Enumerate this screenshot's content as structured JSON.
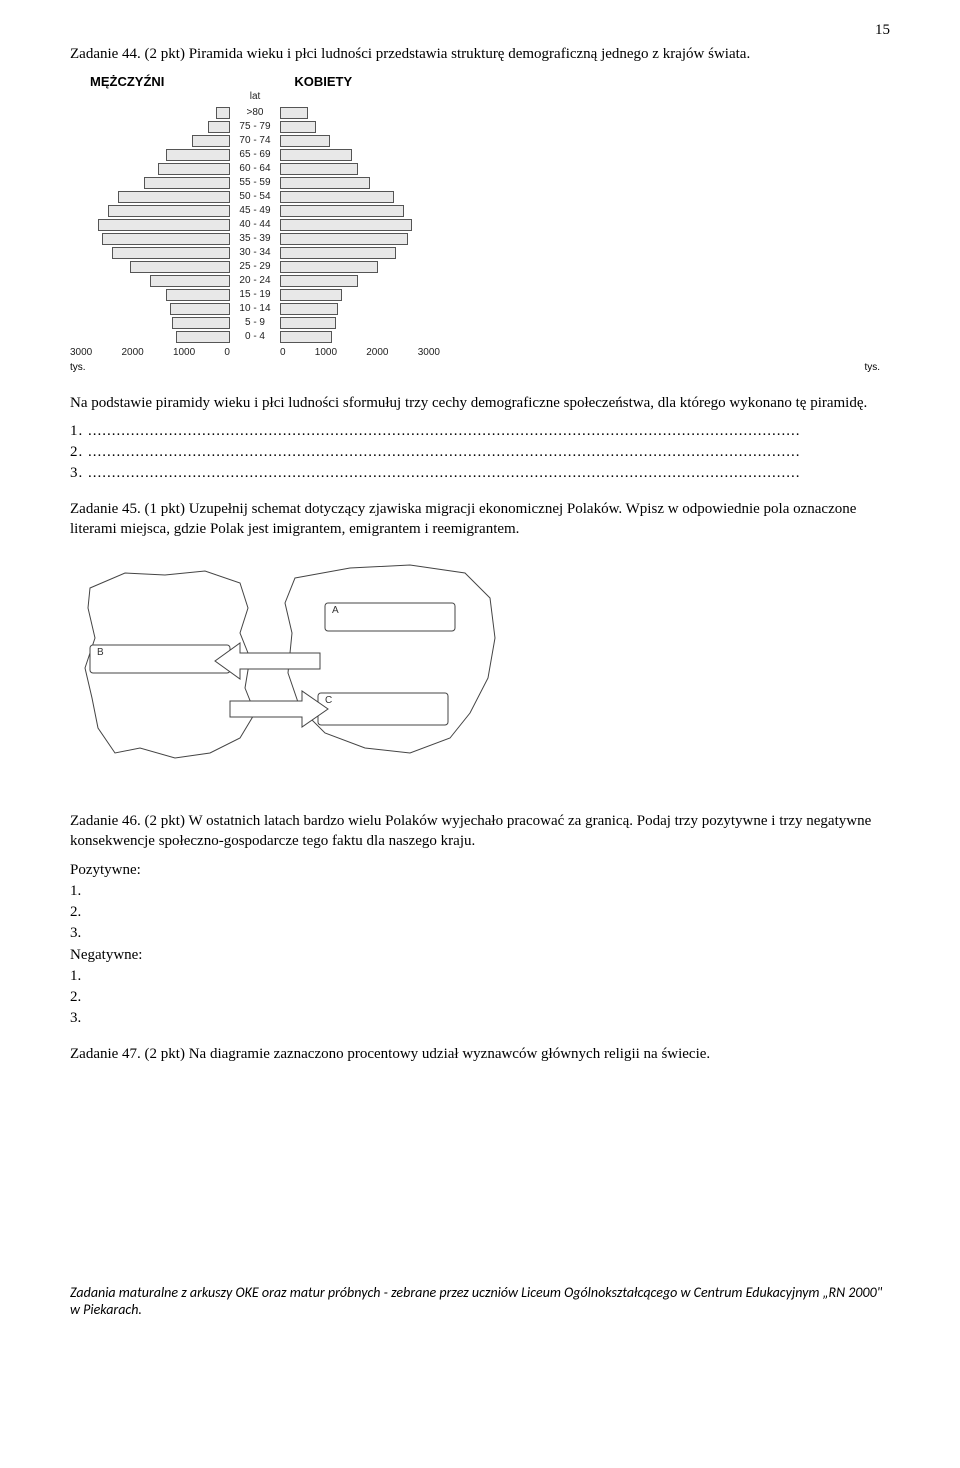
{
  "page_number": "15",
  "task44": {
    "heading": "Zadanie 44. (2 pkt) Piramida wieku i płci ludności przedstawia strukturę demograficzną jednego z krajów świata.",
    "headers": {
      "left": "MĘŻCZYŹNI",
      "right": "KOBIETY",
      "lat": "lat"
    },
    "rows": [
      {
        "label": ">80",
        "m": 14,
        "k": 28
      },
      {
        "label": "75 - 79",
        "m": 22,
        "k": 36
      },
      {
        "label": "70 - 74",
        "m": 38,
        "k": 50
      },
      {
        "label": "65 - 69",
        "m": 64,
        "k": 72
      },
      {
        "label": "60 - 64",
        "m": 72,
        "k": 78
      },
      {
        "label": "55 - 59",
        "m": 86,
        "k": 90
      },
      {
        "label": "50 - 54",
        "m": 112,
        "k": 114
      },
      {
        "label": "45 - 49",
        "m": 122,
        "k": 124
      },
      {
        "label": "40 - 44",
        "m": 132,
        "k": 132
      },
      {
        "label": "35 - 39",
        "m": 128,
        "k": 128
      },
      {
        "label": "30 - 34",
        "m": 118,
        "k": 116
      },
      {
        "label": "25 - 29",
        "m": 100,
        "k": 98
      },
      {
        "label": "20 - 24",
        "m": 80,
        "k": 78
      },
      {
        "label": "15 - 19",
        "m": 64,
        "k": 62
      },
      {
        "label": "10 - 14",
        "m": 60,
        "k": 58
      },
      {
        "label": "5 - 9",
        "m": 58,
        "k": 56
      },
      {
        "label": "0 - 4",
        "m": 54,
        "k": 52
      }
    ],
    "axis_left": [
      "3000",
      "2000",
      "1000",
      "0"
    ],
    "axis_right": [
      "0",
      "1000",
      "2000",
      "3000"
    ],
    "tys": "tys.",
    "instr": "Na podstawie piramidy wieku i płci ludności sformułuj trzy cechy demograficzne społeczeństwa, dla którego wykonano tę piramidę.",
    "lines": [
      "1. ......................................................................................................................................................",
      "2. ......................................................................................................................................................",
      "3. ......................................................................................................................................................"
    ]
  },
  "task45": {
    "text": "Zadanie 45. (1 pkt) Uzupełnij schemat dotyczący zjawiska migracji ekonomicznej Polaków. Wpisz w odpowiednie pola oznaczone literami miejsca, gdzie Polak jest imigrantem, emigrantem i reemigrantem.",
    "boxes": {
      "A": "A",
      "B": "B",
      "C": "C"
    }
  },
  "task46": {
    "text": "Zadanie 46. (2 pkt) W ostatnich latach bardzo wielu Polaków wyjechało pracować za granicą. Podaj trzy pozytywne i trzy negatywne konsekwencje społeczno-gospodarcze tego faktu dla naszego kraju.",
    "pos_label": "Pozytywne:",
    "neg_label": "Negatywne:",
    "items": [
      "1.",
      "2.",
      "3."
    ]
  },
  "task47": {
    "text": "Zadanie 47. (2 pkt) Na diagramie zaznaczono procentowy udział wyznawców głównych religii na świecie."
  },
  "footer": "Zadania maturalne z arkuszy OKE oraz matur próbnych  - zebrane przez uczniów Liceum Ogólnokształcącego w Centrum Edukacyjnym „RN 2000\" w Piekarach."
}
